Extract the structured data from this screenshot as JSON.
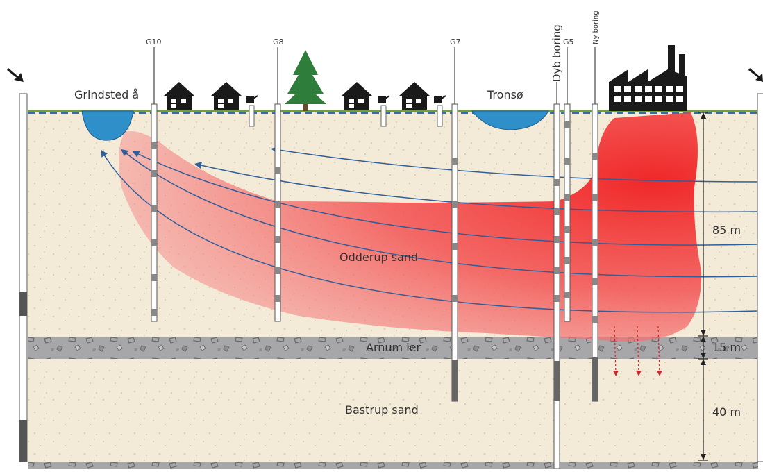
{
  "labels": {
    "stream": "Grindsted å",
    "lake": "Tronsø",
    "upper_aquifer": "Odderup sand",
    "clay_layer": "Arnum ler",
    "lower_aquifer": "Bastrup sand"
  },
  "wells": [
    "G10",
    "G8",
    "G7",
    "Dyb boring",
    "G5",
    "Ny boring"
  ],
  "dimensions": [
    "85 m",
    "15 m",
    "40 m"
  ],
  "colors": {
    "sand": "#f3ead7",
    "clay": "#a7a7a9",
    "water": "#2e8fc9",
    "contamination": "#f02828",
    "flow_arrow": "#2f5f9a",
    "leak_arrow": "#c42b2b",
    "silhouette": "#1a1a1a"
  },
  "icons": [
    "pump-icon",
    "house-icon",
    "tree-icon",
    "factory-icon",
    "watering-can-icon"
  ]
}
